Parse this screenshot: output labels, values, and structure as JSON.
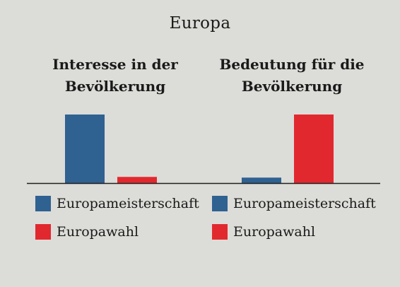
{
  "page": {
    "title": "Europa"
  },
  "colors": {
    "Europameisterschaft": "#2f6191",
    "Europawahl": "#e2282f",
    "axis": "#1f1f1f"
  },
  "chart_data": [
    {
      "type": "bar",
      "title": "Interesse in der Bevölkerung",
      "categories": [
        "Europameisterschaft",
        "Europawahl"
      ],
      "values": [
        100,
        9
      ],
      "ylim": [
        0,
        100
      ],
      "grid": false,
      "legend": "bottom-left"
    },
    {
      "type": "bar",
      "title": "Bedeutung für die Bevölkerung",
      "categories": [
        "Europameisterschaft",
        "Europawahl"
      ],
      "values": [
        8,
        100
      ],
      "ylim": [
        0,
        100
      ],
      "grid": false,
      "legend": "bottom-left"
    }
  ]
}
